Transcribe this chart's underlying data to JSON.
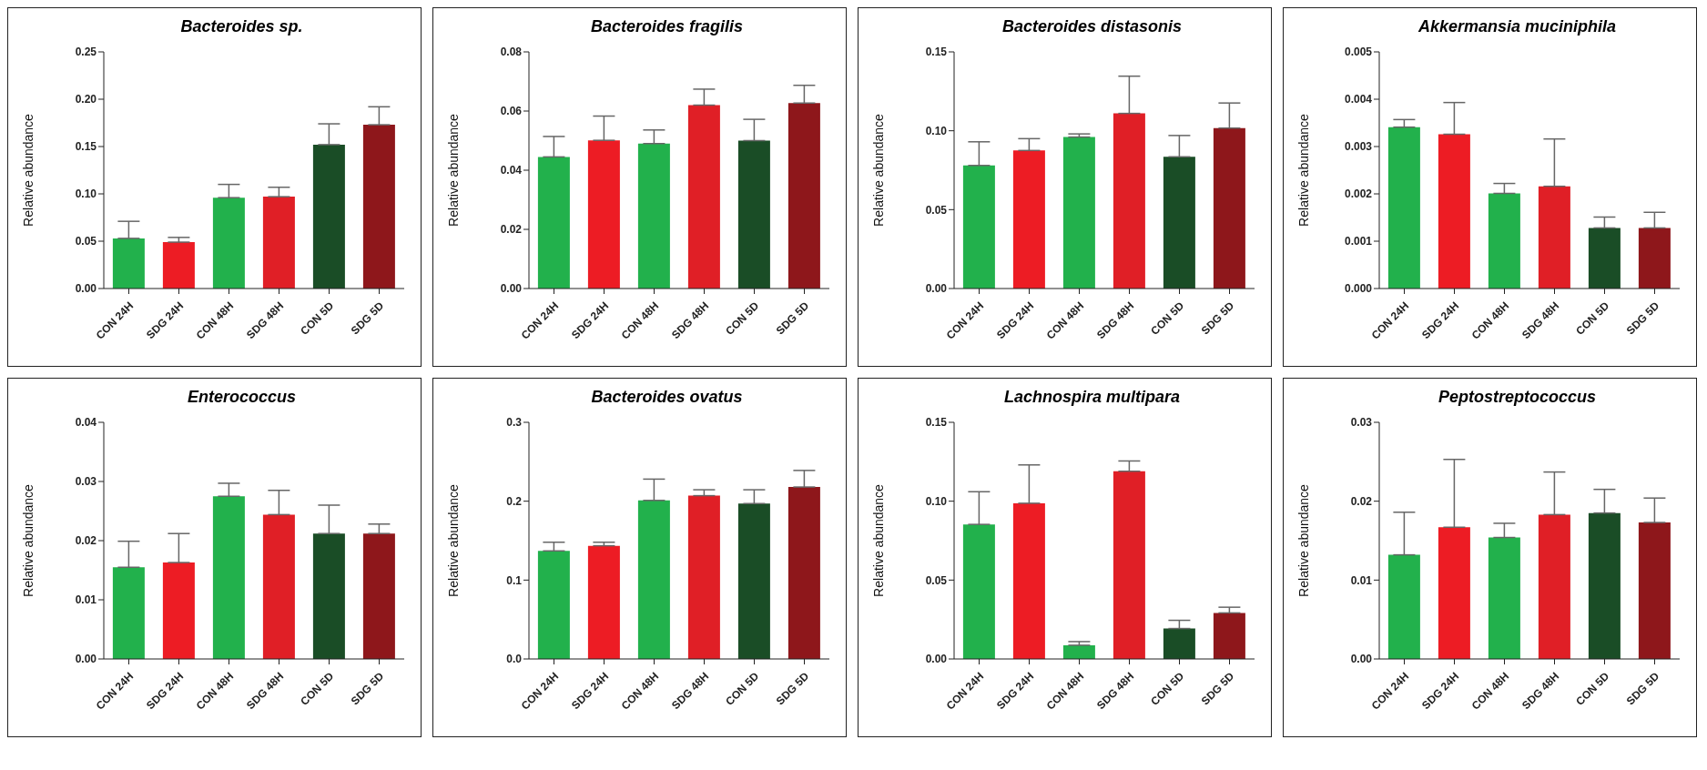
{
  "chart_data": [
    {
      "type": "bar",
      "title": "Bacteroides sp.",
      "ylabel": "Relative abundance",
      "categories": [
        "CON 24H",
        "SDG 24H",
        "CON 48H",
        "SDG 48H",
        "CON 5D",
        "SDG 5D"
      ],
      "values": [
        0.053,
        0.049,
        0.096,
        0.097,
        0.152,
        0.173
      ],
      "errors": [
        [
          0.053,
          0.071
        ],
        [
          0.049,
          0.054
        ],
        [
          0.096,
          0.11
        ],
        [
          0.097,
          0.107
        ],
        [
          0.152,
          0.174
        ],
        [
          0.173,
          0.192
        ]
      ],
      "colors": [
        "#22b14c",
        "#ed1c24",
        "#22b14c",
        "#e01f26",
        "#1a4d26",
        "#8e171b"
      ],
      "ylim": [
        0,
        0.25
      ],
      "yticks": [
        {
          "value": 0,
          "label": "0.00"
        },
        {
          "value": 0.05,
          "label": "0.05"
        },
        {
          "value": 0.1,
          "label": "0.10"
        },
        {
          "value": 0.15,
          "label": "0.15"
        },
        {
          "value": 0.2,
          "label": "0.20"
        },
        {
          "value": 0.25,
          "label": "0.25"
        }
      ]
    },
    {
      "type": "bar",
      "title": "Bacteroides fragilis",
      "ylabel": "Relative abundance",
      "categories": [
        "CON 24H",
        "SDG 24H",
        "CON 48H",
        "SDG 48H",
        "CON 5D",
        "SDG 5D"
      ],
      "values": [
        0.0445,
        0.0501,
        0.049,
        0.062,
        0.05,
        0.0627
      ],
      "errors": [
        [
          0.0445,
          0.0514
        ],
        [
          0.0501,
          0.0583
        ],
        [
          0.049,
          0.0536
        ],
        [
          0.062,
          0.0674
        ],
        [
          0.05,
          0.0572
        ],
        [
          0.0627,
          0.0687
        ]
      ],
      "colors": [
        "#22b14c",
        "#ed1c24",
        "#22b14c",
        "#e01f26",
        "#1a4d26",
        "#8e171b"
      ],
      "ylim": [
        0,
        0.08
      ],
      "yticks": [
        {
          "value": 0,
          "label": "0.00"
        },
        {
          "value": 0.02,
          "label": "0.02"
        },
        {
          "value": 0.04,
          "label": "0.04"
        },
        {
          "value": 0.06,
          "label": "0.06"
        },
        {
          "value": 0.08,
          "label": "0.08"
        }
      ]
    },
    {
      "type": "bar",
      "title": "Bacteroides distasonis",
      "ylabel": "Relative abundance",
      "categories": [
        "CON 24H",
        "SDG 24H",
        "CON 48H",
        "SDG 48H",
        "CON 5D",
        "SDG 5D"
      ],
      "values": [
        0.078,
        0.0875,
        0.096,
        0.111,
        0.0835,
        0.1017
      ],
      "errors": [
        [
          0.078,
          0.093
        ],
        [
          0.0875,
          0.095
        ],
        [
          0.096,
          0.098
        ],
        [
          0.111,
          0.1346
        ],
        [
          0.0835,
          0.097
        ],
        [
          0.1017,
          0.1176
        ]
      ],
      "colors": [
        "#22b14c",
        "#ed1c24",
        "#22b14c",
        "#e01f26",
        "#1a4d26",
        "#8e171b"
      ],
      "ylim": [
        0,
        0.15
      ],
      "yticks": [
        {
          "value": 0,
          "label": "0.00"
        },
        {
          "value": 0.05,
          "label": "0.05"
        },
        {
          "value": 0.1,
          "label": "0.10"
        },
        {
          "value": 0.15,
          "label": "0.15"
        }
      ]
    },
    {
      "type": "bar",
      "title": "Akkermansia muciniphila",
      "ylabel": "Relative abundance",
      "categories": [
        "CON 24H",
        "SDG 24H",
        "CON 48H",
        "SDG 48H",
        "CON 5D",
        "SDG 5D"
      ],
      "values": [
        0.00341,
        0.00326,
        0.00201,
        0.00216,
        0.00128,
        0.00128
      ],
      "errors": [
        [
          0.00341,
          0.00357
        ],
        [
          0.00326,
          0.00393
        ],
        [
          0.00201,
          0.00222
        ],
        [
          0.00216,
          0.00316
        ],
        [
          0.00128,
          0.00151
        ],
        [
          0.00128,
          0.00161
        ]
      ],
      "colors": [
        "#22b14c",
        "#ed1c24",
        "#22b14c",
        "#e01f26",
        "#1a4d26",
        "#8e171b"
      ],
      "ylim": [
        0,
        0.005
      ],
      "yticks": [
        {
          "value": 0,
          "label": "0.000"
        },
        {
          "value": 0.001,
          "label": "0.001"
        },
        {
          "value": 0.002,
          "label": "0.002"
        },
        {
          "value": 0.003,
          "label": "0.003"
        },
        {
          "value": 0.004,
          "label": "0.004"
        },
        {
          "value": 0.005,
          "label": "0.005"
        }
      ]
    },
    {
      "type": "bar",
      "title": "Enterococcus",
      "ylabel": "Relative abundance",
      "categories": [
        "CON 24H",
        "SDG 24H",
        "CON 48H",
        "SDG 48H",
        "CON 5D",
        "SDG 5D"
      ],
      "values": [
        0.0155,
        0.0163,
        0.0275,
        0.0244,
        0.0212,
        0.0212
      ],
      "errors": [
        [
          0.0155,
          0.0199
        ],
        [
          0.0163,
          0.0212
        ],
        [
          0.0275,
          0.0297
        ],
        [
          0.0244,
          0.0285
        ],
        [
          0.0212,
          0.026
        ],
        [
          0.0212,
          0.0228
        ]
      ],
      "colors": [
        "#22b14c",
        "#ed1c24",
        "#22b14c",
        "#e01f26",
        "#1a4d26",
        "#8e171b"
      ],
      "ylim": [
        0,
        0.04
      ],
      "yticks": [
        {
          "value": 0,
          "label": "0.00"
        },
        {
          "value": 0.01,
          "label": "0.01"
        },
        {
          "value": 0.02,
          "label": "0.02"
        },
        {
          "value": 0.03,
          "label": "0.03"
        },
        {
          "value": 0.04,
          "label": "0.04"
        }
      ]
    },
    {
      "type": "bar",
      "title": "Bacteroides ovatus",
      "ylabel": "Relative abundance",
      "categories": [
        "CON 24H",
        "SDG 24H",
        "CON 48H",
        "SDG 48H",
        "CON 5D",
        "SDG 5D"
      ],
      "values": [
        0.137,
        0.1435,
        0.201,
        0.207,
        0.197,
        0.218
      ],
      "errors": [
        [
          0.137,
          0.148
        ],
        [
          0.1435,
          0.148
        ],
        [
          0.201,
          0.228
        ],
        [
          0.207,
          0.2145
        ],
        [
          0.197,
          0.2145
        ],
        [
          0.218,
          0.239
        ]
      ],
      "colors": [
        "#22b14c",
        "#ed1c24",
        "#22b14c",
        "#e01f26",
        "#1a4d26",
        "#8e171b"
      ],
      "ylim": [
        0,
        0.3
      ],
      "yticks": [
        {
          "value": 0,
          "label": "0.0"
        },
        {
          "value": 0.1,
          "label": "0.1"
        },
        {
          "value": 0.2,
          "label": "0.2"
        },
        {
          "value": 0.3,
          "label": "0.3"
        }
      ]
    },
    {
      "type": "bar",
      "title": "Lachnospira multipara",
      "ylabel": "Relative abundance",
      "categories": [
        "CON 24H",
        "SDG 24H",
        "CON 48H",
        "SDG 48H",
        "CON 5D",
        "SDG 5D"
      ],
      "values": [
        0.0853,
        0.0987,
        0.0087,
        0.119,
        0.0193,
        0.0292
      ],
      "errors": [
        [
          0.0853,
          0.106
        ],
        [
          0.0987,
          0.123
        ],
        [
          0.0087,
          0.011
        ],
        [
          0.119,
          0.1255
        ],
        [
          0.0193,
          0.0245
        ],
        [
          0.0292,
          0.0328
        ]
      ],
      "colors": [
        "#22b14c",
        "#ed1c24",
        "#22b14c",
        "#e01f26",
        "#1a4d26",
        "#8e171b"
      ],
      "ylim": [
        0,
        0.15
      ],
      "yticks": [
        {
          "value": 0,
          "label": "0.00"
        },
        {
          "value": 0.05,
          "label": "0.05"
        },
        {
          "value": 0.1,
          "label": "0.10"
        },
        {
          "value": 0.15,
          "label": "0.15"
        }
      ]
    },
    {
      "type": "bar",
      "title": "Peptostreptococcus",
      "ylabel": "Relative abundance",
      "categories": [
        "CON 24H",
        "SDG 24H",
        "CON 48H",
        "SDG 48H",
        "CON 5D",
        "SDG 5D"
      ],
      "values": [
        0.0132,
        0.0167,
        0.0154,
        0.0183,
        0.0185,
        0.0173
      ],
      "errors": [
        [
          0.0132,
          0.0186
        ],
        [
          0.0167,
          0.0253
        ],
        [
          0.0154,
          0.0172
        ],
        [
          0.0183,
          0.0237
        ],
        [
          0.0185,
          0.0215
        ],
        [
          0.0173,
          0.0204
        ]
      ],
      "colors": [
        "#22b14c",
        "#ed1c24",
        "#22b14c",
        "#e01f26",
        "#1a4d26",
        "#8e171b"
      ],
      "ylim": [
        0,
        0.03
      ],
      "yticks": [
        {
          "value": 0,
          "label": "0.00"
        },
        {
          "value": 0.01,
          "label": "0.01"
        },
        {
          "value": 0.02,
          "label": "0.02"
        },
        {
          "value": 0.03,
          "label": "0.03"
        }
      ]
    }
  ]
}
